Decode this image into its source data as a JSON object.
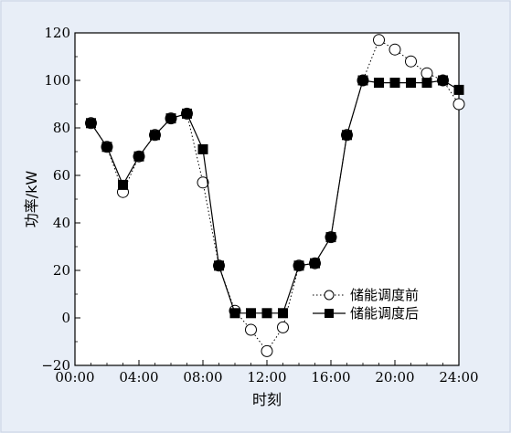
{
  "chart_data": {
    "type": "line",
    "title": "",
    "xlabel": "时刻",
    "ylabel": "功率/kW",
    "xlim": [
      0,
      24
    ],
    "ylim": [
      -20,
      120
    ],
    "x_ticks": [
      0,
      4,
      8,
      12,
      16,
      20,
      24
    ],
    "x_tick_labels": [
      "00:00",
      "04:00",
      "08:00",
      "12:00",
      "16:00",
      "20:00",
      "24:00"
    ],
    "y_ticks": [
      -20,
      0,
      20,
      40,
      60,
      80,
      100,
      120
    ],
    "y_tick_labels": [
      "−20",
      "0",
      "20",
      "40",
      "60",
      "80",
      "100",
      "120"
    ],
    "grid": false,
    "legend_position": "lower-right",
    "x": [
      1,
      2,
      3,
      4,
      5,
      6,
      7,
      8,
      9,
      10,
      11,
      12,
      13,
      14,
      15,
      16,
      17,
      18,
      19,
      20,
      21,
      22,
      23,
      24
    ],
    "series": [
      {
        "name": "储能调度前",
        "style": "dotted-circle",
        "color": "#000000",
        "values": [
          82,
          72,
          53,
          68,
          77,
          84,
          86,
          57,
          22,
          3,
          -5,
          -14,
          -4,
          22,
          23,
          34,
          77,
          100,
          117,
          113,
          108,
          103,
          100,
          90
        ]
      },
      {
        "name": "储能调度后",
        "style": "solid-square",
        "color": "#000000",
        "values": [
          82,
          72,
          56,
          68,
          77,
          84,
          86,
          71,
          22,
          2,
          2,
          2,
          2,
          22,
          23,
          34,
          77,
          100,
          99,
          99,
          99,
          99,
          100,
          96
        ]
      }
    ]
  }
}
